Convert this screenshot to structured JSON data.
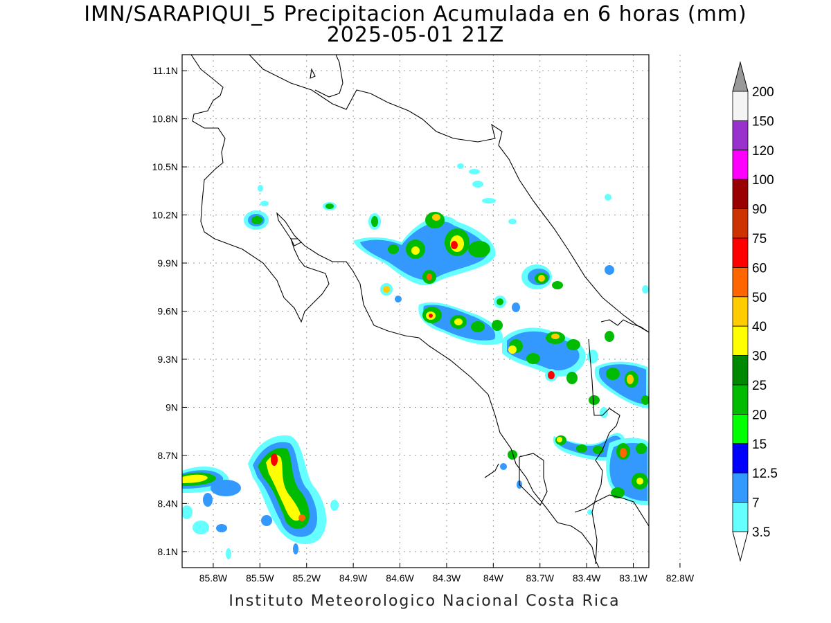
{
  "title_line1": "IMN/SARAPIQUI_5 Precipitacion Acumulada en 6 horas (mm)",
  "title_line2": "2025-05-01 21Z",
  "footer": "Instituto Meteorologico Nacional Costa Rica",
  "axes": {
    "lon_range": [
      -86.0,
      -83.0
    ],
    "lat_range": [
      8.0,
      11.2
    ],
    "lat_ticks": [
      "11.1N",
      "10.8N",
      "10.5N",
      "10.2N",
      "9.9N",
      "9.6N",
      "9.3N",
      "9N",
      "8.7N",
      "8.4N",
      "8.1N"
    ],
    "lon_ticks": [
      "85.8W",
      "85.5W",
      "85.2W",
      "84.9W",
      "84.6W",
      "84.3W",
      "84W",
      "83.7W",
      "83.4W",
      "83.1W",
      "82.8W"
    ]
  },
  "colorbar": {
    "labels": [
      "200",
      "150",
      "120",
      "100",
      "90",
      "75",
      "60",
      "50",
      "40",
      "30",
      "25",
      "20",
      "15",
      "12.5",
      "7",
      "3.5"
    ],
    "colors": [
      "#f4f4f4",
      "#9932cc",
      "#ff00ff",
      "#990000",
      "#cc3300",
      "#ff0000",
      "#ff6600",
      "#ffcc00",
      "#ffff00",
      "#008800",
      "#00bb00",
      "#00ff00",
      "#0000ff",
      "#3399ff",
      "#66ffff"
    ],
    "top_arrow_color": "#999999",
    "bottom_arrow_color": "#ffffff"
  }
}
